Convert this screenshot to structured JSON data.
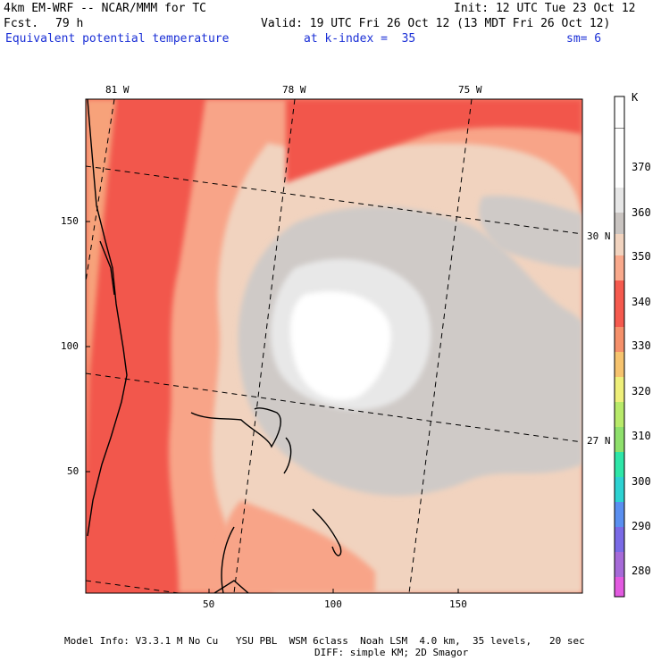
{
  "header": {
    "model": "4km EM-WRF -- NCAR/MMM for TC",
    "init": "Init: 12 UTC Tue 23 Oct 12",
    "fcst_label": "Fcst.",
    "fcst_value": "79 h",
    "valid": "Valid: 19 UTC Fri 26 Oct 12 (13 MDT Fri 26 Oct 12)",
    "field": "Equivalent potential temperature",
    "level": "at k-index =  35",
    "smoothing": "sm= 6"
  },
  "map": {
    "longitude_labels": [
      "81 W",
      "78 W",
      "75 W"
    ],
    "latitude_labels": [
      "30 N",
      "27 N"
    ],
    "x_axis_ticks": [
      "50",
      "100",
      "150"
    ],
    "y_axis_ticks": [
      "150",
      "100",
      "50"
    ],
    "storm_feature": "tropical cyclone (Sandy) eye — high theta-e core"
  },
  "colorbar": {
    "unit": "K",
    "levels": [
      {
        "label": "370",
        "color": "#ffffff"
      },
      {
        "label": "360",
        "color": "#e6e6e6"
      },
      {
        "label": "350",
        "color": "#cfcac7"
      },
      {
        "label": "340",
        "color": "#f2d2bd"
      },
      {
        "label": "330",
        "color": "#f9a98c"
      },
      {
        "label": "320",
        "color": "#f55a4e"
      },
      {
        "label": "310",
        "color": "#f5906a"
      },
      {
        "label": "300",
        "color": "#f6c36e"
      },
      {
        "label": "290",
        "color": "#eeef7a"
      },
      {
        "label": "280",
        "color": "#8ee06c"
      }
    ],
    "low_colors": [
      "#2ee6a8",
      "#2dd2d2",
      "#5a8ff0",
      "#7a6ae6",
      "#a66ad8",
      "#e25ae0"
    ]
  },
  "footer": {
    "line1": "Model Info: V3.3.1 M No Cu   YSU PBL  WSM 6class  Noah LSM  4.0 km,  35 levels,   20 sec",
    "line2": "DIFF: simple KM; 2D Smagor"
  }
}
